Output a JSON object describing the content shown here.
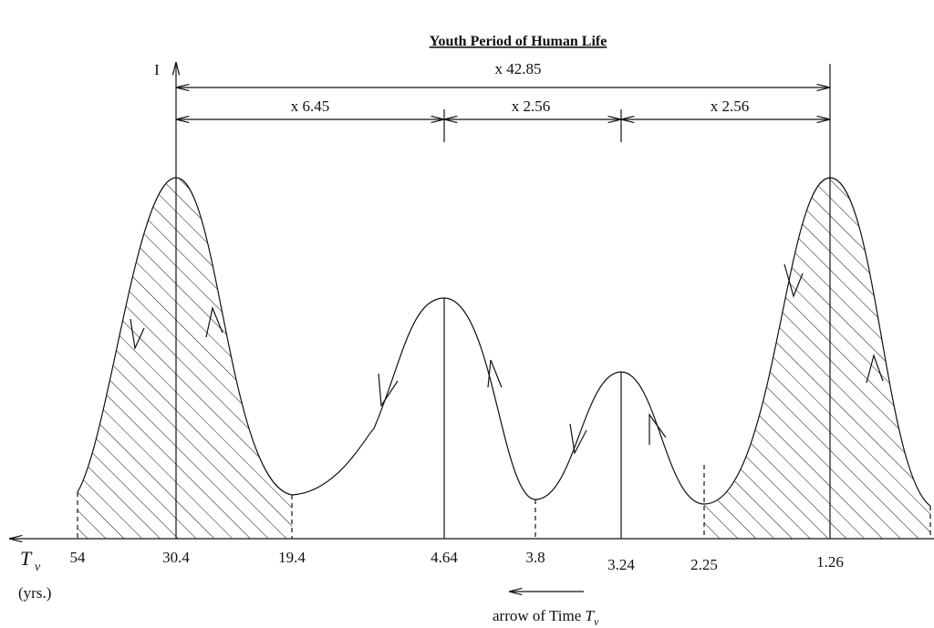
{
  "title": "Youth Period of Human Life",
  "axis": {
    "y_label": "I",
    "x_label": "T",
    "x_label_sub": "ν",
    "x_unit": "(yrs.)"
  },
  "ticks": [
    "54",
    "30.4",
    "19.4",
    "4.64",
    "3.8",
    "3.24",
    "2.25",
    "1.26"
  ],
  "dimensions": [
    "x 42.85",
    "x 6.45",
    "x 2.56",
    "x 2.56"
  ],
  "caption": "arrow of Time ",
  "caption_symbol": "T",
  "caption_sub": "ν"
}
